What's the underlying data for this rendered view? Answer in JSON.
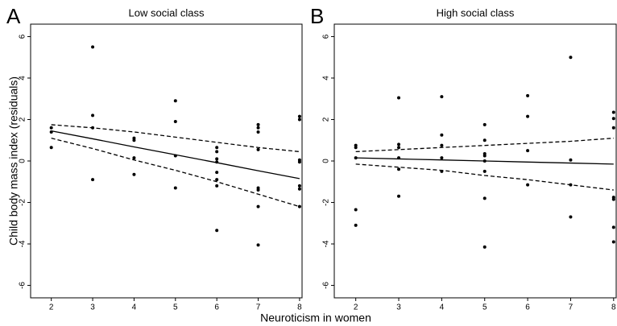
{
  "x_label": "Neuroticism in women",
  "y_label": "Child body mass index (residuals)",
  "chart_data": [
    {
      "type": "scatter",
      "panel": "A",
      "title": "Low social class",
      "xlim": [
        1.5,
        8.06
      ],
      "ylim": [
        -6.6,
        6.6
      ],
      "xticks": [
        2,
        3,
        4,
        5,
        6,
        7,
        8
      ],
      "yticks": [
        -6,
        -4,
        -2,
        0,
        2,
        4,
        6
      ],
      "series": [
        {
          "mark": "point",
          "color": "#000000",
          "x": [
            2,
            2,
            2,
            3,
            3,
            3,
            3,
            4,
            4,
            4,
            4,
            5,
            5,
            5,
            5,
            6,
            6,
            6,
            6,
            6,
            6,
            6,
            6,
            7,
            7,
            7,
            7,
            7,
            7,
            7,
            7,
            8,
            8,
            8,
            8,
            8,
            8,
            8
          ],
          "values": [
            1.6,
            1.4,
            0.65,
            5.5,
            2.2,
            1.6,
            -0.9,
            1.1,
            1.0,
            0.15,
            -0.65,
            2.9,
            1.9,
            0.25,
            -1.3,
            0.65,
            0.45,
            0.1,
            -0.05,
            -0.55,
            -0.9,
            -1.2,
            -3.35,
            1.75,
            1.6,
            1.4,
            0.55,
            -1.3,
            -1.4,
            -2.2,
            -4.05,
            2.15,
            2.0,
            0.05,
            -0.05,
            -1.2,
            -1.35,
            -2.2
          ]
        },
        {
          "mark": "line",
          "style": "solid",
          "color": "#000000",
          "x": [
            2,
            3,
            4,
            5,
            6,
            7,
            8
          ],
          "values": [
            1.45,
            1.07,
            0.68,
            0.3,
            -0.08,
            -0.47,
            -0.85
          ]
        },
        {
          "mark": "line",
          "style": "dashed",
          "color": "#000000",
          "x": [
            2,
            3,
            4,
            5,
            6,
            7,
            8
          ],
          "values": [
            1.75,
            1.6,
            1.4,
            1.15,
            0.9,
            0.65,
            0.45
          ]
        },
        {
          "mark": "line",
          "style": "dashed",
          "color": "#000000",
          "x": [
            2,
            3,
            4,
            5,
            6,
            7,
            8
          ],
          "values": [
            1.1,
            0.6,
            0.05,
            -0.45,
            -1.0,
            -1.6,
            -2.2
          ]
        }
      ]
    },
    {
      "type": "scatter",
      "panel": "B",
      "title": "High social class",
      "xlim": [
        1.5,
        8.06
      ],
      "ylim": [
        -6.6,
        6.6
      ],
      "xticks": [
        2,
        3,
        4,
        5,
        6,
        7,
        8
      ],
      "yticks": [
        -6,
        -4,
        -2,
        0,
        2,
        4,
        6
      ],
      "series": [
        {
          "mark": "point",
          "color": "#000000",
          "x": [
            2,
            2,
            2,
            2,
            2,
            3,
            3,
            3,
            3,
            3,
            3,
            4,
            4,
            4,
            4,
            4,
            5,
            5,
            5,
            5,
            5,
            5,
            5,
            5,
            6,
            6,
            6,
            6,
            7,
            7,
            7,
            7,
            8,
            8,
            8,
            8,
            8,
            8,
            8
          ],
          "values": [
            0.75,
            0.65,
            0.15,
            -2.35,
            -3.1,
            3.05,
            0.8,
            0.65,
            0.15,
            -0.4,
            -1.7,
            3.1,
            1.25,
            0.75,
            0.15,
            -0.5,
            1.75,
            1.0,
            0.35,
            0.25,
            0.0,
            -0.5,
            -1.8,
            -4.15,
            3.15,
            2.15,
            0.5,
            -1.15,
            5.0,
            0.05,
            -1.15,
            -2.7,
            2.35,
            2.05,
            1.6,
            -1.75,
            -1.85,
            -3.2,
            -3.9
          ]
        },
        {
          "mark": "line",
          "style": "solid",
          "color": "#000000",
          "x": [
            2,
            3,
            4,
            5,
            6,
            7,
            8
          ],
          "values": [
            0.15,
            0.1,
            0.05,
            0,
            -0.05,
            -0.1,
            -0.15
          ]
        },
        {
          "mark": "line",
          "style": "dashed",
          "color": "#000000",
          "x": [
            2,
            3,
            4,
            5,
            6,
            7,
            8
          ],
          "values": [
            0.45,
            0.55,
            0.65,
            0.75,
            0.85,
            0.95,
            1.1
          ]
        },
        {
          "mark": "line",
          "style": "dashed",
          "color": "#000000",
          "x": [
            2,
            3,
            4,
            5,
            6,
            7,
            8
          ],
          "values": [
            -0.15,
            -0.3,
            -0.45,
            -0.7,
            -0.9,
            -1.15,
            -1.4
          ]
        }
      ]
    }
  ]
}
